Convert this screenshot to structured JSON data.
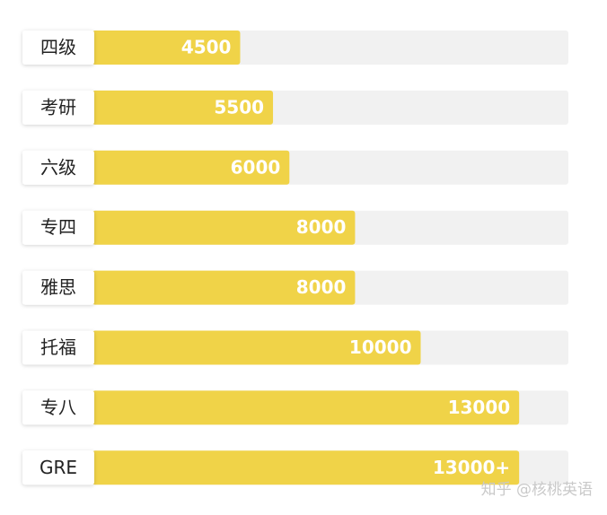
{
  "chart_data": {
    "type": "barh",
    "categories": [
      "四级",
      "考研",
      "六级",
      "专四",
      "雅思",
      "托福",
      "专八",
      "GRE"
    ],
    "values": [
      4500,
      5500,
      6000,
      8000,
      8000,
      10000,
      13000,
      13000
    ],
    "value_labels": [
      "4500",
      "5500",
      "6000",
      "8000",
      "8000",
      "10000",
      "13000",
      "13000+"
    ],
    "color": "#f0d348",
    "track_color": "#f1f1f1",
    "xlim": [
      0,
      14500
    ],
    "watermark": "知乎 @核桃英语"
  }
}
